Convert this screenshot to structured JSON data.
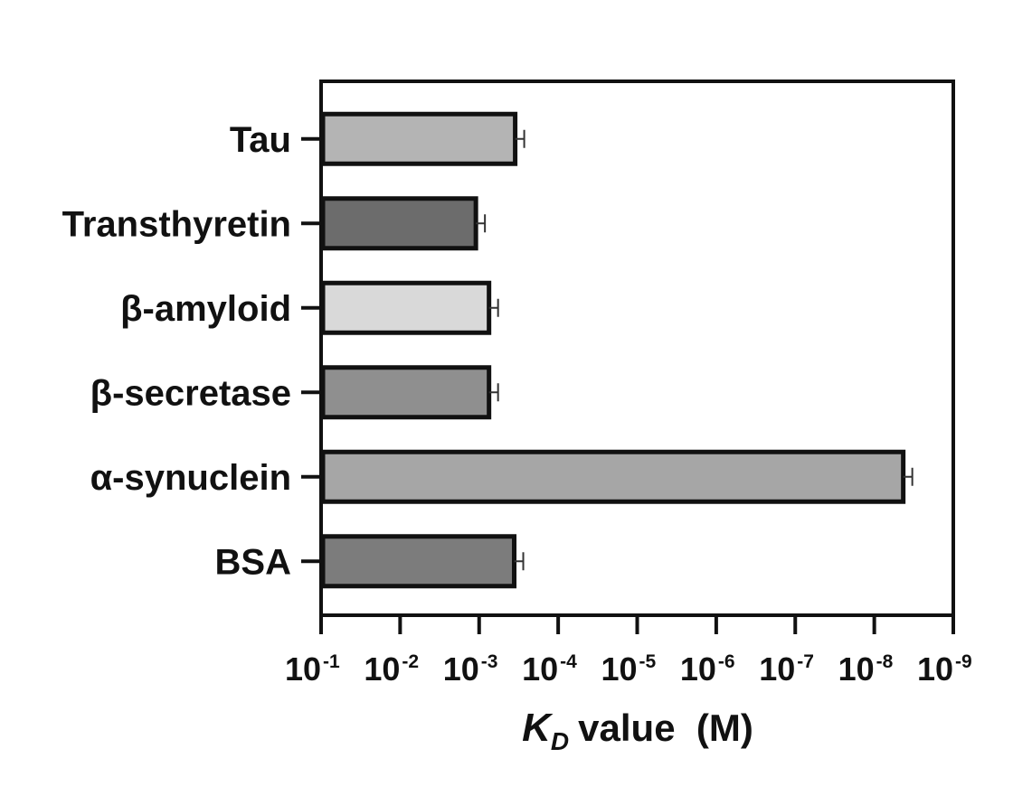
{
  "chart_data": {
    "type": "bar",
    "orientation": "horizontal",
    "categories": [
      "Tau",
      "Transthyretin",
      "β-amyloid",
      "β-secretase",
      "α-synuclein",
      "BSA"
    ],
    "values": [
      0.00035,
      0.0011,
      0.00075,
      0.00075,
      4.3e-09,
      0.00036
    ],
    "xlabel": {
      "symbol": "K",
      "subscript": "D",
      "text": "value  (M)"
    },
    "xscale": "log",
    "xlim": [
      0.1,
      1e-09
    ],
    "x_reversed": true,
    "xticks": [
      {
        "base": "10",
        "exp": "-1"
      },
      {
        "base": "10",
        "exp": "-2"
      },
      {
        "base": "10",
        "exp": "-3"
      },
      {
        "base": "10",
        "exp": "-4"
      },
      {
        "base": "10",
        "exp": "-5"
      },
      {
        "base": "10",
        "exp": "-6"
      },
      {
        "base": "10",
        "exp": "-7"
      },
      {
        "base": "10",
        "exp": "-8"
      },
      {
        "base": "10",
        "exp": "-9"
      }
    ],
    "error_bars": true,
    "grid": false,
    "legend": "none",
    "bar_colors": [
      "#b4b4b4",
      "#6c6c6c",
      "#d9d9d9",
      "#8f8f8f",
      "#a6a6a6",
      "#7c7c7c"
    ]
  }
}
